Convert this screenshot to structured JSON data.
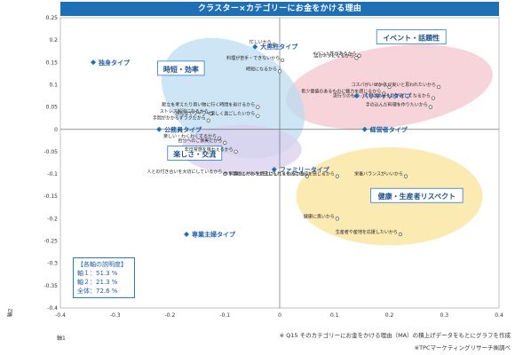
{
  "header": {
    "title": "クラスター×カテゴリーにお金をかける理由"
  },
  "chart_data": {
    "type": "scatter",
    "title": "クラスター×カテゴリーにお金をかける理由",
    "xlabel": "軸1",
    "ylabel": "軸2",
    "xlim": [
      -0.4,
      0.4
    ],
    "ylim": [
      -0.4,
      0.25
    ],
    "x_ticks": [
      "-0.4",
      "-0.3",
      "-0.2",
      "-0.1",
      "0",
      "0.1",
      "0.2",
      "0.3",
      "0.4"
    ],
    "y_ticks": [
      "0.25",
      "0.2",
      "0.15",
      "0.1",
      "0.05",
      "0",
      "-0.05",
      "-0.1",
      "-0.15",
      "-0.2",
      "-0.25",
      "-0.3",
      "-0.35",
      "-0.4"
    ],
    "grid": false,
    "clusters": [
      {
        "label": "イベント・話題性",
        "color": "#f4c6cc"
      },
      {
        "label": "時短・効率",
        "color": "#bcdcf0"
      },
      {
        "label": "楽しさ・交流",
        "color": "#d9cfee"
      },
      {
        "label": "健康・生産者リスペクト",
        "color": "#fbe39a"
      }
    ],
    "types": [
      {
        "label": "独身タイプ",
        "x": -0.34,
        "y": 0.15
      },
      {
        "label": "大黒柱タイプ",
        "x": -0.045,
        "y": 0.185
      },
      {
        "label": "バリキャリタイプ",
        "x": 0.14,
        "y": 0.075
      },
      {
        "label": "公務員タイプ",
        "x": -0.22,
        "y": 0.0
      },
      {
        "label": "経営者タイプ",
        "x": 0.155,
        "y": 0.0
      },
      {
        "label": "ファミリータイプ",
        "x": -0.01,
        "y": -0.09
      },
      {
        "label": "専業主婦タイプ",
        "x": -0.17,
        "y": -0.235
      }
    ],
    "reasons": [
      {
        "label": "忙しいから",
        "x": -0.01,
        "y": 0.19
      },
      {
        "label": "料理が苦手・できないから",
        "x": 0.005,
        "y": 0.155
      },
      {
        "label": "時短になるから",
        "x": 0.0,
        "y": 0.13
      },
      {
        "label": "話のネタになるから",
        "x": 0.14,
        "y": 0.16
      },
      {
        "label": "イベント性があるから",
        "x": 0.145,
        "y": 0.165
      },
      {
        "label": "コスパがいいから",
        "x": 0.2,
        "y": 0.095
      },
      {
        "label": "センスが良いと思われたいから",
        "x": 0.29,
        "y": 0.095
      },
      {
        "label": "希少価値のあるものに魅力を感じるから",
        "x": 0.19,
        "y": 0.08
      },
      {
        "label": "流行りのもの／人気のあるものが欲しくなるから",
        "x": 0.28,
        "y": 0.07
      },
      {
        "label": "手の込んだ料理を作りたいから",
        "x": 0.275,
        "y": 0.05
      },
      {
        "label": "ストレス解消になるから",
        "x": -0.125,
        "y": 0.035
      },
      {
        "label": "手間がかからずラクだから",
        "x": -0.13,
        "y": 0.02
      },
      {
        "label": "献立を考えたり買い物に行く時間を省けるから",
        "x": -0.04,
        "y": 0.05
      },
      {
        "label": "みんなでワイワイ楽しく過ごしたいから",
        "x": -0.04,
        "y": 0.03
      },
      {
        "label": "楽しい・わくわくするから",
        "x": -0.11,
        "y": -0.02
      },
      {
        "label": "自分へのご褒美だから",
        "x": -0.1,
        "y": -0.03
      },
      {
        "label": "非日常感を味わえるから",
        "x": -0.08,
        "y": -0.05
      },
      {
        "label": "人との付き合いを大切にしているから",
        "x": -0.1,
        "y": -0.1
      },
      {
        "label": "料理のレベルを底上げしてくれるから",
        "x": 0.05,
        "y": -0.105
      },
      {
        "label": "作り手のこだわりが感じられるものに価値を感じるから",
        "x": 0.105,
        "y": -0.105
      },
      {
        "label": "栄養バランスがいいから",
        "x": 0.23,
        "y": -0.105
      },
      {
        "label": "健康に良いから",
        "x": 0.105,
        "y": -0.2
      },
      {
        "label": "生産者や産地を応援したいから",
        "x": 0.22,
        "y": -0.235
      }
    ],
    "legend_box": {
      "title": "【各軸の説明度】",
      "lines": [
        "軸１：51.3 %",
        "軸２：21.3 %",
        "全体：72.6 %"
      ]
    }
  },
  "notes": {
    "source": "※ Q15 そのカテゴリーにお金をかける理由（MA）の積上げデータをもとにグラフを作成",
    "credit": "※TPCマーケティングリサーチ㈱調べ"
  }
}
